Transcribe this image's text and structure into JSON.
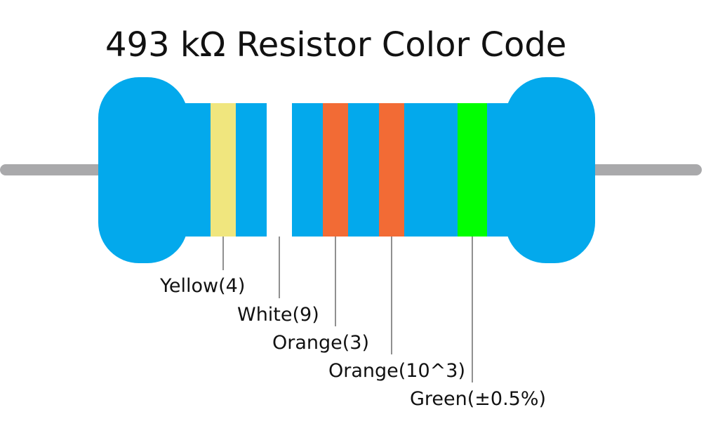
{
  "title": "493 kΩ Resistor Color Code",
  "bands": [
    {
      "label": "Yellow(4)",
      "color": "#f0e67e"
    },
    {
      "label": "White(9)",
      "color": "#ffffff"
    },
    {
      "label": "Orange(3)",
      "color": "#f26b35"
    },
    {
      "label": "Orange(10^3)",
      "color": "#f26b35"
    },
    {
      "label": "Green(±0.5%)",
      "color": "#00ff00"
    }
  ]
}
